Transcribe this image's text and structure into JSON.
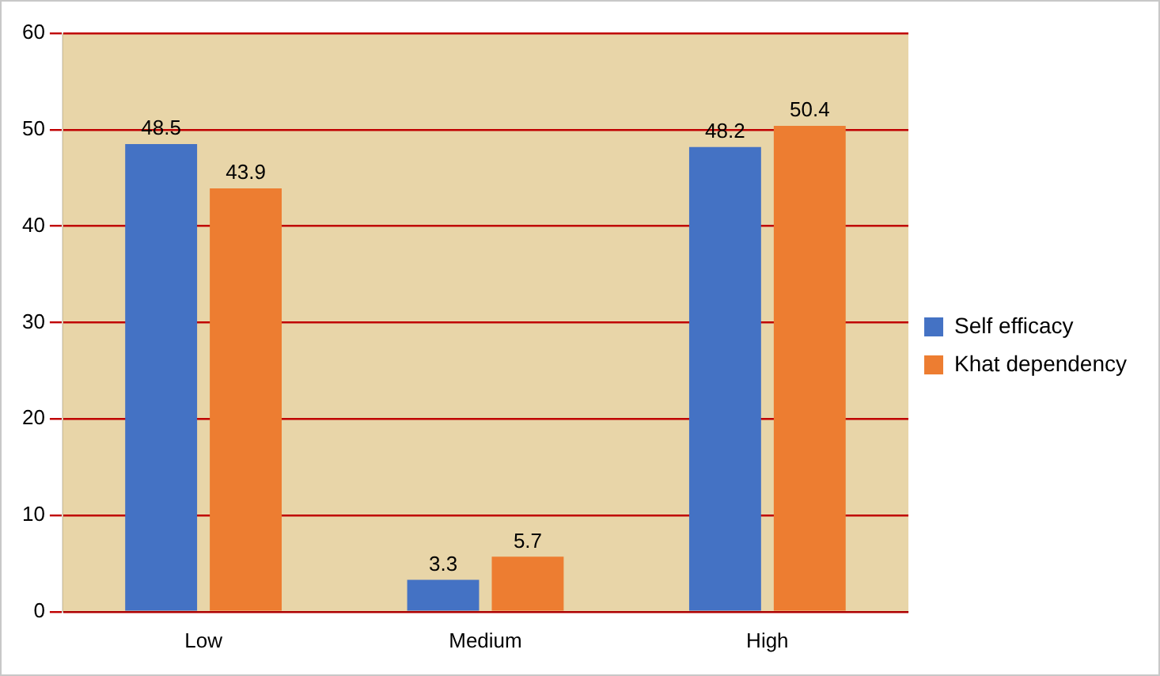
{
  "chart_data": {
    "type": "bar",
    "categories": [
      "Low",
      "Medium",
      "High"
    ],
    "series": [
      {
        "name": "Self efficacy",
        "color": "#4472c4",
        "values": [
          48.5,
          3.3,
          48.2
        ]
      },
      {
        "name": "Khat dependency",
        "color": "#ed7d31",
        "values": [
          43.9,
          5.7,
          50.4
        ]
      }
    ],
    "ylim": [
      0,
      60
    ],
    "yticks": [
      0,
      10,
      20,
      30,
      40,
      50,
      60
    ],
    "grid": "y",
    "legend": "right",
    "data_labels": true
  }
}
